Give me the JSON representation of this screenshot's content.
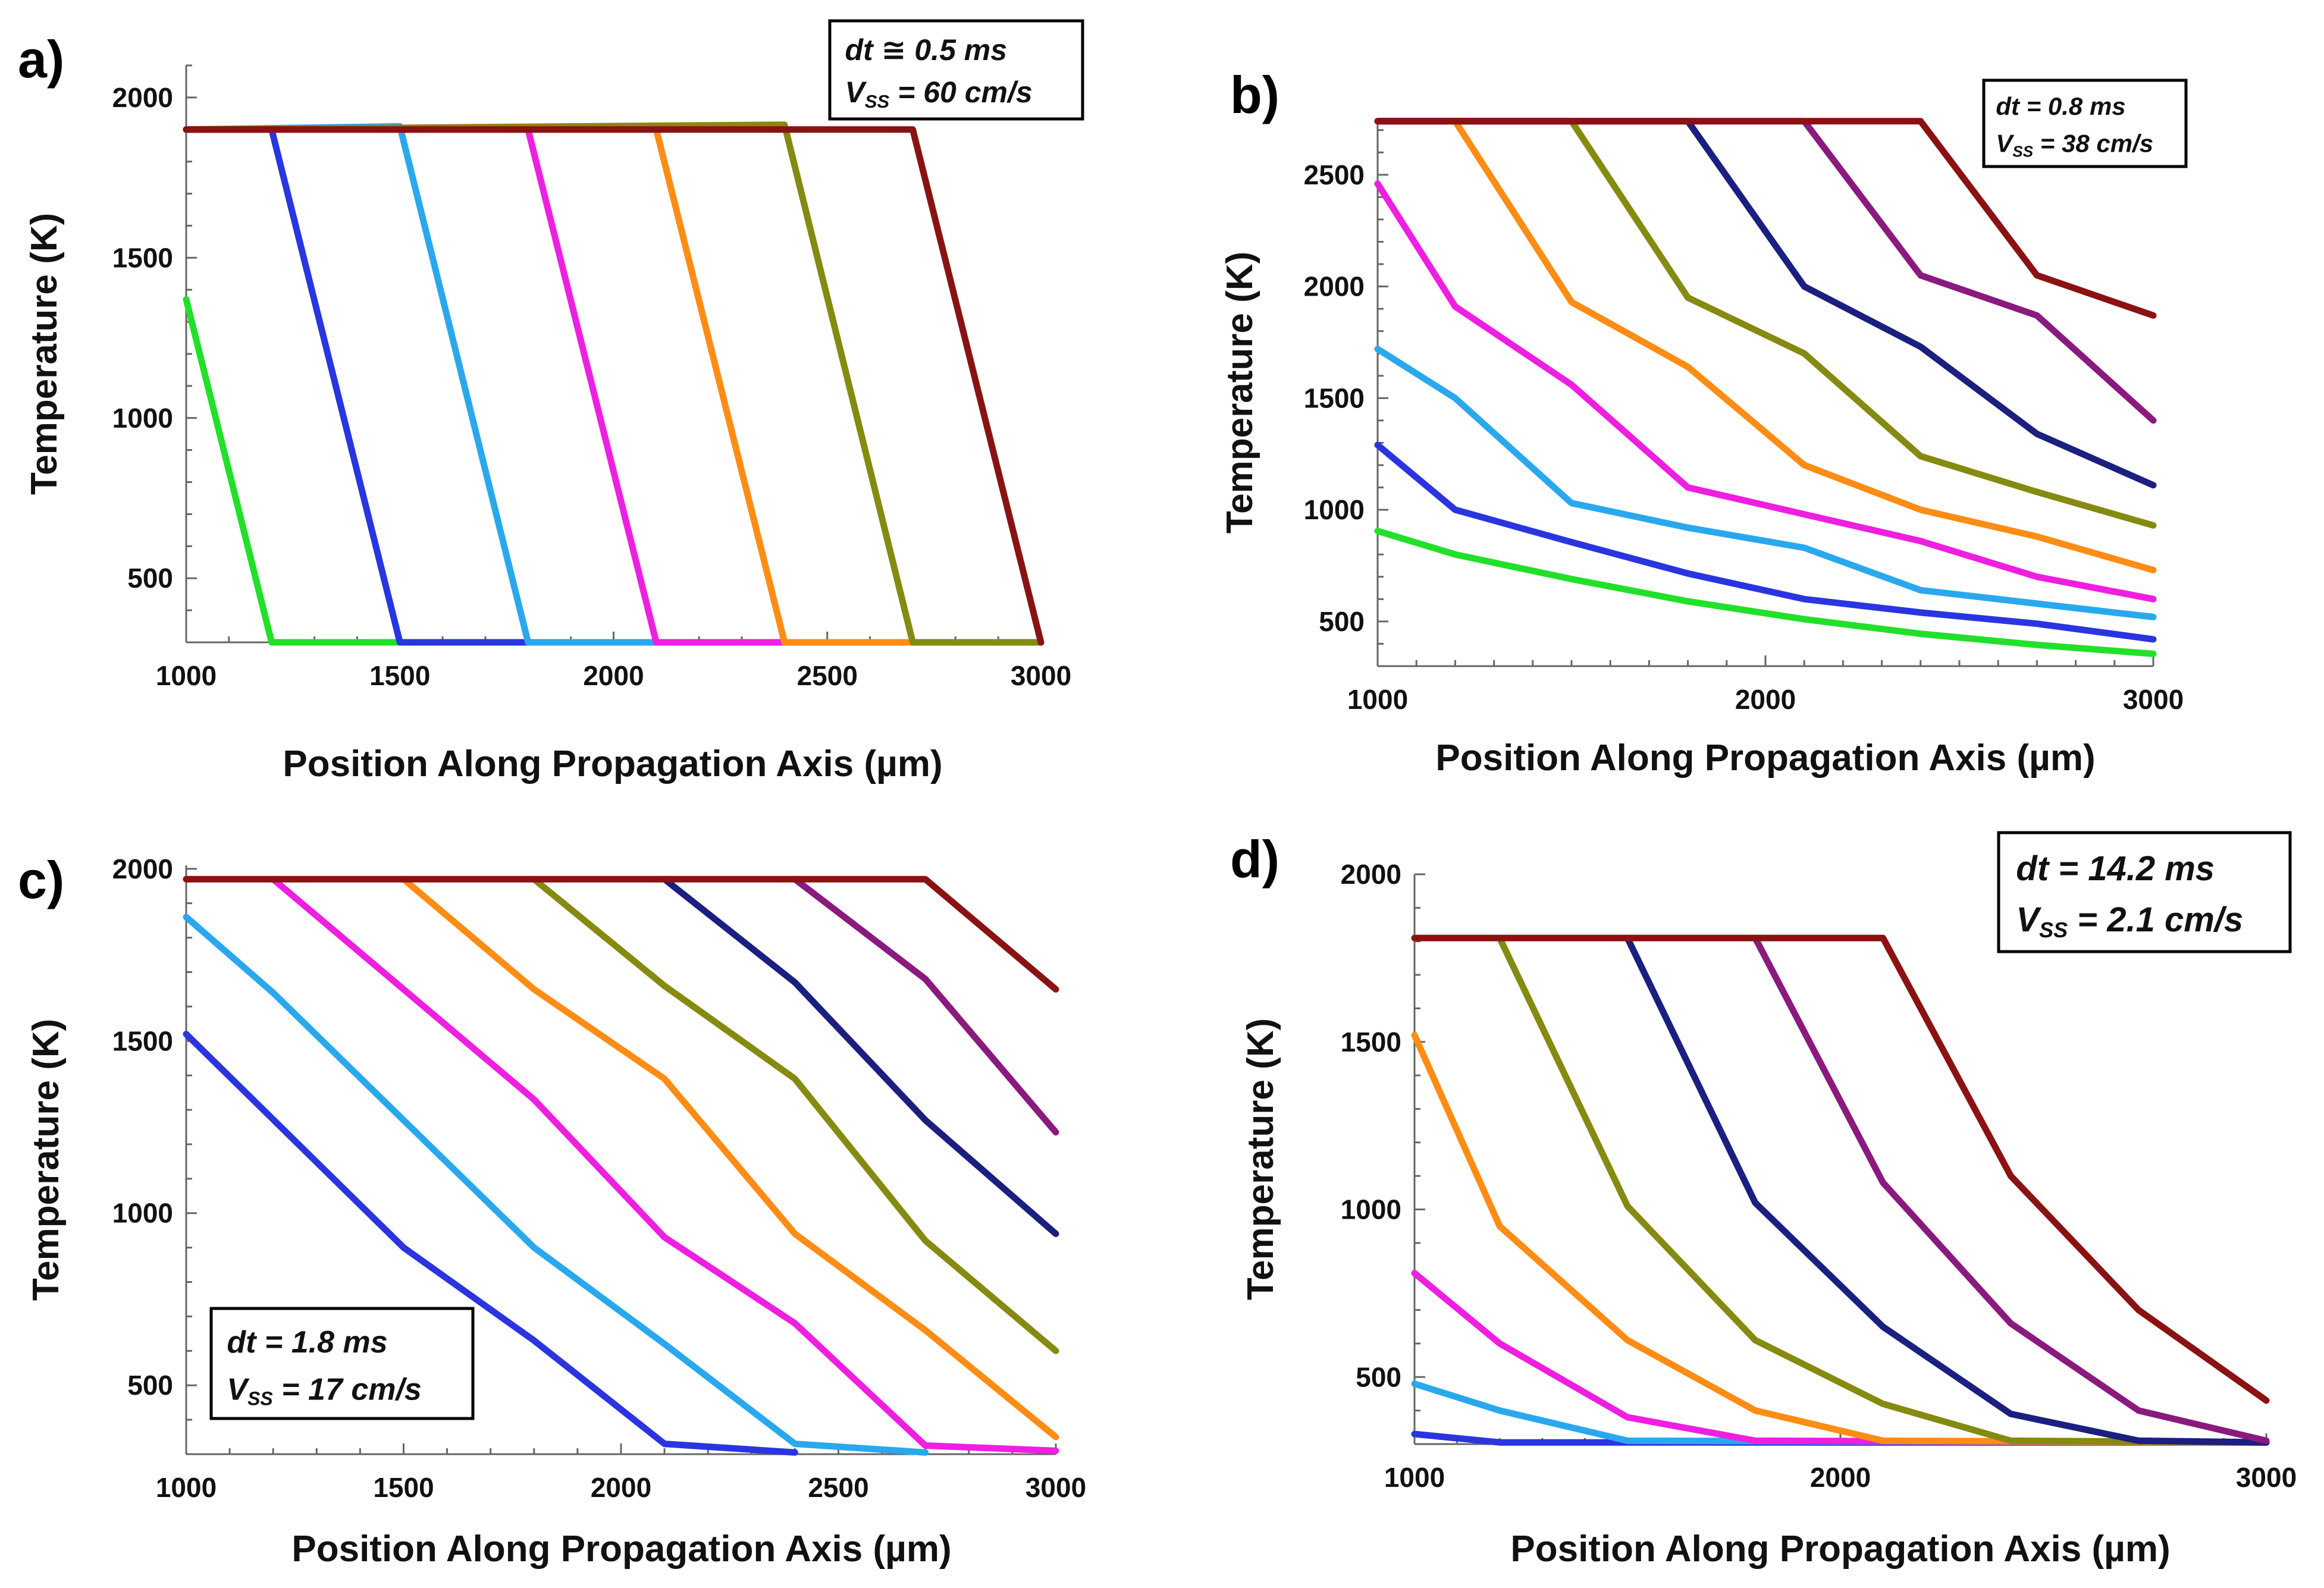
{
  "chart_data": [
    {
      "type": "line",
      "panel_label": "a)",
      "xlabel": "Position Along Propagation Axis (µm)",
      "ylabel": "Temperature (K)",
      "xlim": [
        1000,
        3000
      ],
      "ylim": [
        300,
        2100
      ],
      "xticks": [
        1000,
        1500,
        2000,
        2500,
        3000
      ],
      "yticks": [
        500,
        1000,
        1500,
        2000
      ],
      "annotation": {
        "line1": "dt ≅ 0.5 ms",
        "line2_prefix": "V",
        "line2_sub": "SS",
        "line2_suffix": " = 60 cm/s"
      },
      "series": [
        {
          "color": "#22e02a",
          "x": [
            1000,
            1200,
            3000
          ],
          "y": [
            1370,
            300,
            300
          ]
        },
        {
          "color": "#2a35e0",
          "x": [
            1000,
            1200,
            1500,
            3000
          ],
          "y": [
            1900,
            1900,
            300,
            300
          ]
        },
        {
          "color": "#2aa8ee",
          "x": [
            1000,
            1500,
            1800,
            3000
          ],
          "y": [
            1900,
            1910,
            300,
            300
          ]
        },
        {
          "color": "#ee1fe0",
          "x": [
            1000,
            1800,
            2100,
            3000
          ],
          "y": [
            1900,
            1900,
            300,
            300
          ]
        },
        {
          "color": "#ff8c14",
          "x": [
            1000,
            2100,
            2400,
            3000
          ],
          "y": [
            1900,
            1900,
            300,
            300
          ]
        },
        {
          "color": "#858a10",
          "x": [
            1000,
            2400,
            2700,
            3000
          ],
          "y": [
            1900,
            1915,
            300,
            300
          ]
        },
        {
          "color": "#8b1212",
          "x": [
            1000,
            2700,
            3000
          ],
          "y": [
            1900,
            1900,
            300
          ]
        }
      ]
    },
    {
      "type": "line",
      "panel_label": "b)",
      "xlabel": "Position Along Propagation Axis (µm)",
      "ylabel": "Temperature (K)",
      "xlim": [
        1000,
        3000
      ],
      "ylim": [
        300,
        2750
      ],
      "xticks": [
        1000,
        2000,
        3000
      ],
      "yticks": [
        500,
        1000,
        1500,
        2000,
        2500
      ],
      "annotation": {
        "line1": "dt = 0.8 ms",
        "line2_prefix": "V",
        "line2_sub": "SS",
        "line2_suffix": " = 38 cm/s"
      },
      "series": [
        {
          "color": "#22e02a",
          "x": [
            1000,
            1200,
            1500,
            1800,
            2100,
            2400,
            2700,
            3000
          ],
          "y": [
            905,
            800,
            690,
            590,
            510,
            445,
            395,
            355
          ]
        },
        {
          "color": "#2a35e0",
          "x": [
            1000,
            1200,
            1500,
            1800,
            2100,
            2400,
            2700,
            3000
          ],
          "y": [
            1290,
            1000,
            855,
            715,
            600,
            540,
            490,
            420
          ]
        },
        {
          "color": "#2aa8ee",
          "x": [
            1000,
            1200,
            1500,
            1800,
            2100,
            2400,
            2700,
            3000
          ],
          "y": [
            1720,
            1500,
            1030,
            920,
            830,
            640,
            580,
            520
          ]
        },
        {
          "color": "#ee1fe0",
          "x": [
            1000,
            1200,
            1500,
            1800,
            2100,
            2400,
            2700,
            3000
          ],
          "y": [
            2460,
            1910,
            1560,
            1100,
            980,
            860,
            700,
            600
          ]
        },
        {
          "color": "#ff8c14",
          "x": [
            1000,
            1200,
            1500,
            1800,
            2100,
            2400,
            2700,
            3000
          ],
          "y": [
            2740,
            2740,
            1930,
            1640,
            1200,
            1000,
            880,
            730
          ]
        },
        {
          "color": "#858a10",
          "x": [
            1000,
            1500,
            1800,
            2100,
            2400,
            2700,
            3000
          ],
          "y": [
            2740,
            2740,
            1950,
            1700,
            1240,
            1080,
            930
          ]
        },
        {
          "color": "#1a1f80",
          "x": [
            1000,
            1800,
            2100,
            2400,
            2700,
            3000
          ],
          "y": [
            2740,
            2740,
            2000,
            1730,
            1340,
            1110
          ]
        },
        {
          "color": "#8a1a7e",
          "x": [
            1000,
            2100,
            2400,
            2700,
            3000
          ],
          "y": [
            2740,
            2740,
            2050,
            1870,
            1400
          ]
        },
        {
          "color": "#8b1212",
          "x": [
            1000,
            2400,
            2700,
            3000
          ],
          "y": [
            2740,
            2740,
            2050,
            1870
          ]
        }
      ]
    },
    {
      "type": "line",
      "panel_label": "c)",
      "xlabel": "Position Along Propagation Axis (µm)",
      "ylabel": "Temperature (K)",
      "xlim": [
        1000,
        3000
      ],
      "ylim": [
        300,
        2010
      ],
      "xticks": [
        1000,
        1500,
        2000,
        2500,
        3000
      ],
      "yticks": [
        500,
        1000,
        1500,
        2000
      ],
      "annotation": {
        "line1": "dt = 1.8 ms",
        "line2_prefix": "V",
        "line2_sub": "SS",
        "line2_suffix": " = 17 cm/s"
      },
      "series": [
        {
          "color": "#2a35e0",
          "x": [
            1000,
            1500,
            1800,
            2100,
            2400
          ],
          "y": [
            1520,
            900,
            630,
            330,
            305
          ]
        },
        {
          "color": "#2aa8ee",
          "x": [
            1000,
            1200,
            1500,
            1800,
            2100,
            2400,
            2700
          ],
          "y": [
            1860,
            1640,
            1270,
            900,
            620,
            330,
            305
          ]
        },
        {
          "color": "#ee1fe0",
          "x": [
            1200,
            1500,
            1800,
            2100,
            2400,
            2700,
            3000
          ],
          "y": [
            1970,
            1650,
            1330,
            930,
            680,
            325,
            310
          ]
        },
        {
          "color": "#ff8c14",
          "x": [
            1500,
            1800,
            2100,
            2400,
            2700,
            3000
          ],
          "y": [
            1970,
            1650,
            1390,
            940,
            660,
            350
          ]
        },
        {
          "color": "#858a10",
          "x": [
            1800,
            2100,
            2400,
            2700,
            3000
          ],
          "y": [
            1970,
            1660,
            1390,
            920,
            600
          ]
        },
        {
          "color": "#1a1f80",
          "x": [
            2100,
            2400,
            2700,
            3000
          ],
          "y": [
            1970,
            1670,
            1270,
            940
          ]
        },
        {
          "color": "#8a1a7e",
          "x": [
            2400,
            2700,
            3000
          ],
          "y": [
            1970,
            1680,
            1235
          ]
        },
        {
          "color": "#8b1212",
          "x": [
            1000,
            2700,
            3000
          ],
          "y": [
            1970,
            1970,
            1650
          ]
        }
      ]
    },
    {
      "type": "line",
      "panel_label": "d)",
      "xlabel": "Position Along Propagation Axis (µm)",
      "ylabel": "Temperature (K)",
      "xlim": [
        1000,
        3000
      ],
      "ylim": [
        300,
        2000
      ],
      "xticks": [
        1000,
        2000,
        3000
      ],
      "yticks": [
        500,
        1000,
        1500,
        2000
      ],
      "annotation": {
        "line1": "dt = 14.2 ms",
        "line2_prefix": "V",
        "line2_sub": "SS",
        "line2_suffix": " = 2.1 cm/s"
      },
      "series": [
        {
          "color": "#2a35e0",
          "x": [
            1000,
            1200,
            3000
          ],
          "y": [
            330,
            305,
            305
          ]
        },
        {
          "color": "#2aa8ee",
          "x": [
            1000,
            1200,
            1500,
            3000
          ],
          "y": [
            480,
            400,
            310,
            305
          ]
        },
        {
          "color": "#ee1fe0",
          "x": [
            1000,
            1200,
            1500,
            1800,
            3000
          ],
          "y": [
            810,
            600,
            380,
            310,
            305
          ]
        },
        {
          "color": "#ff8c14",
          "x": [
            1000,
            1200,
            1500,
            1800,
            2100,
            3000
          ],
          "y": [
            1520,
            950,
            610,
            400,
            310,
            305
          ]
        },
        {
          "color": "#858a10",
          "x": [
            1200,
            1500,
            1800,
            2100,
            2400,
            3000
          ],
          "y": [
            1810,
            1010,
            610,
            420,
            310,
            305
          ]
        },
        {
          "color": "#1a1f80",
          "x": [
            1500,
            1800,
            2100,
            2400,
            2700,
            3000
          ],
          "y": [
            1810,
            1020,
            650,
            390,
            310,
            305
          ]
        },
        {
          "color": "#8a1a7e",
          "x": [
            1800,
            2100,
            2400,
            2700,
            3000
          ],
          "y": [
            1810,
            1080,
            660,
            400,
            310
          ]
        },
        {
          "color": "#8b1212",
          "x": [
            1000,
            2100,
            2400,
            2700,
            3000
          ],
          "y": [
            1810,
            1810,
            1100,
            700,
            430
          ]
        }
      ]
    }
  ]
}
